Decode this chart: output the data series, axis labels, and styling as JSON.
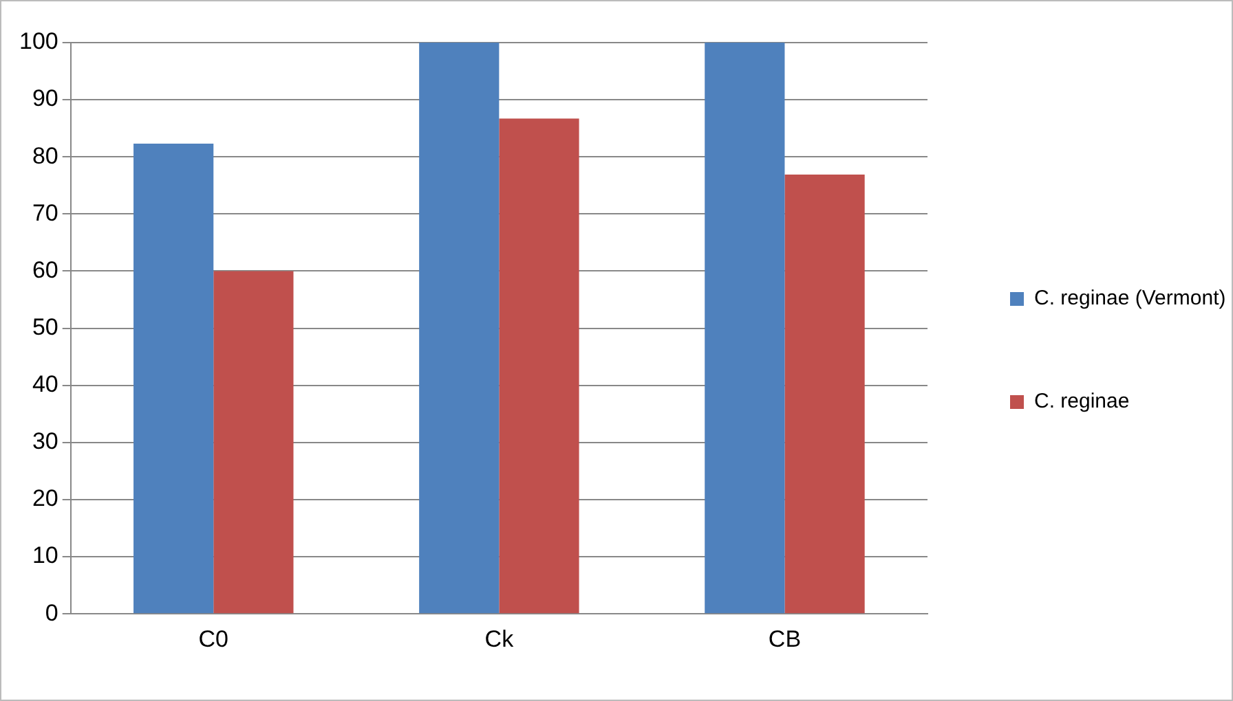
{
  "chart_data": {
    "type": "bar",
    "categories": [
      "C0",
      "Ck",
      "CB"
    ],
    "series": [
      {
        "name": "C. reginae (Vermont)",
        "color": "#4f81bd",
        "values": [
          82.3,
          100,
          100
        ]
      },
      {
        "name": "C. reginae",
        "color": "#c0504d",
        "values": [
          60,
          86.7,
          76.9
        ]
      }
    ],
    "ylim": [
      0,
      100
    ],
    "yticks": [
      0,
      10,
      20,
      30,
      40,
      50,
      60,
      70,
      80,
      90,
      100
    ],
    "grid": "y",
    "legend": "right"
  }
}
